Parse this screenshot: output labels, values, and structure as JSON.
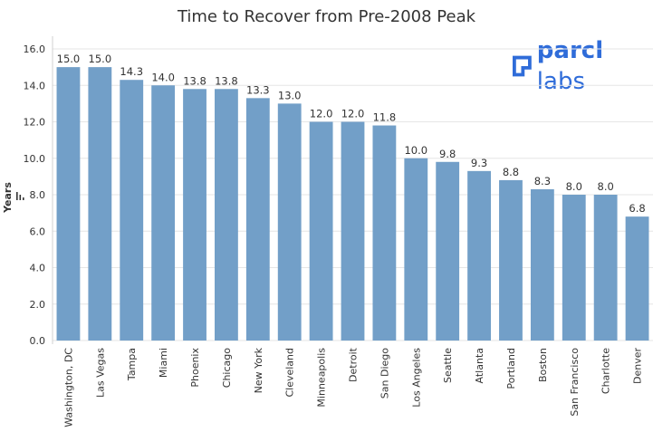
{
  "title": "Time to Recover from Pre-2008 Peak",
  "logo": {
    "brand": "parcl",
    "suffix": "labs",
    "color": "#2f6cd9"
  },
  "chart_data": {
    "type": "bar",
    "title": "Time to Recover from Pre-2008 Peak",
    "xlabel": "",
    "ylabel": "Years",
    "ylim": [
      0,
      16.5
    ],
    "yticks": [
      "0.0",
      "2.0",
      "4.0",
      "6.0",
      "8.0",
      "10.0",
      "12.0",
      "14.0",
      "16.0"
    ],
    "grid": true,
    "bar_color": "#729fc8",
    "categories": [
      "Washington,  DC",
      "Las Vegas",
      "Tampa",
      "Miami",
      "Phoenix",
      "Chicago",
      "New York",
      "Cleveland",
      "Minneapolis",
      "Detroit",
      "San Diego",
      "Los Angeles",
      "Seattle",
      "Atlanta",
      "Portland",
      "Boston",
      "San Francisco",
      "Charlotte",
      "Denver"
    ],
    "values": [
      15.0,
      15.0,
      14.3,
      14.0,
      13.8,
      13.8,
      13.3,
      13.0,
      12.0,
      12.0,
      11.8,
      10.0,
      9.8,
      9.3,
      8.8,
      8.3,
      8.0,
      8.0,
      6.8
    ],
    "value_labels": [
      "15.0",
      "15.0",
      "14.3",
      "14.0",
      "13.8",
      "13.8",
      "13.3",
      "13.0",
      "12.0",
      "12.0",
      "11.8",
      "10.0",
      "9.8",
      "9.3",
      "8.8",
      "8.3",
      "8.0",
      "8.0",
      "6.8"
    ]
  }
}
